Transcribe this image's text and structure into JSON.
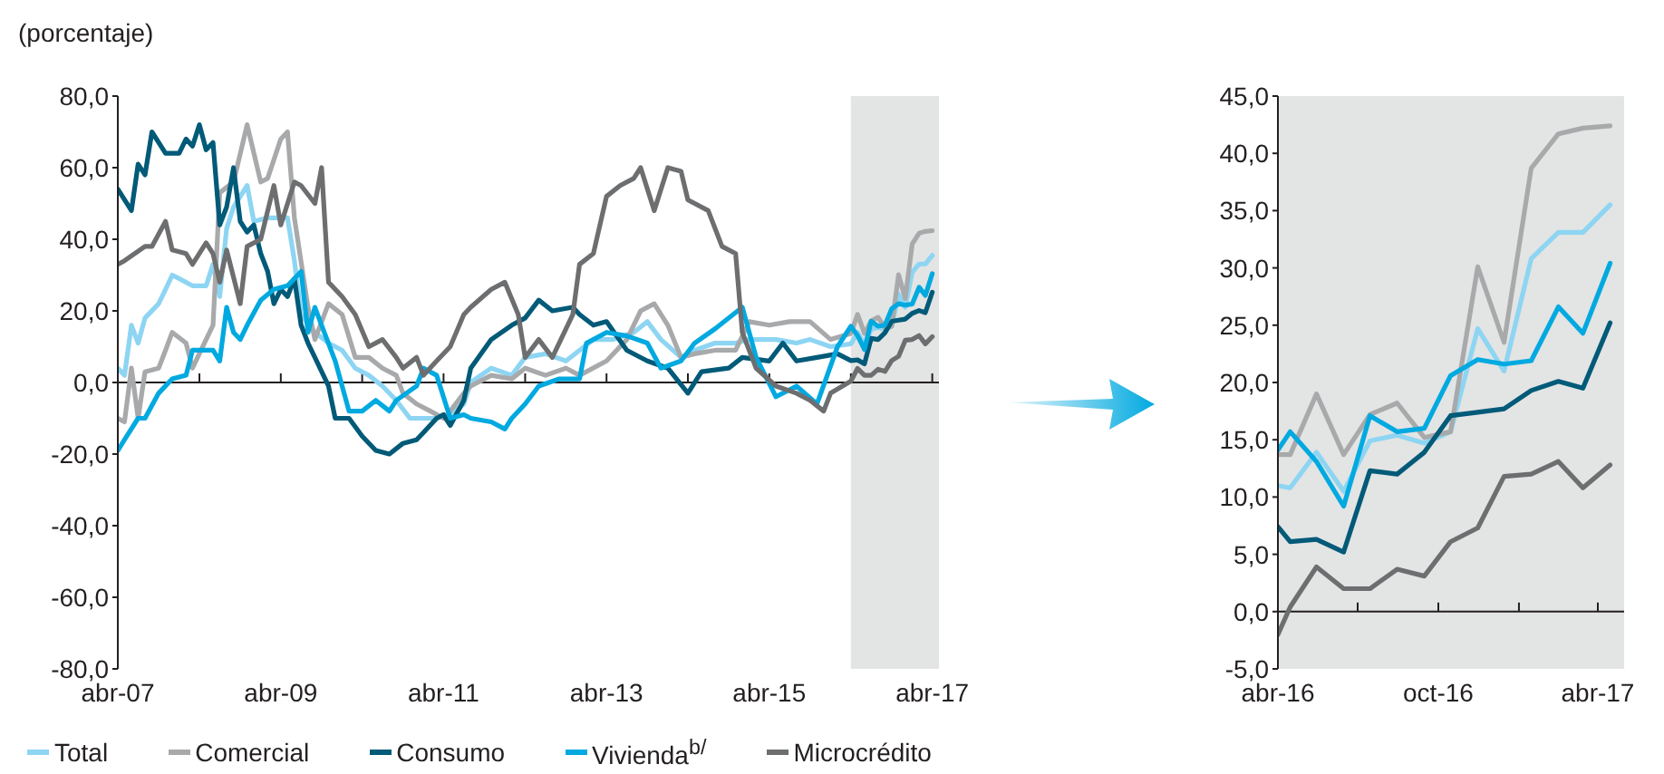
{
  "chart_data": [
    {
      "type": "line",
      "ylabel": "(porcentaje)",
      "xlim": [
        "2007-04",
        "2017-05"
      ],
      "ylim": [
        -80,
        80
      ],
      "xticks": [
        {
          "value": "2007-04",
          "label": "abr-07"
        },
        {
          "value": "2008-04",
          "label": null
        },
        {
          "value": "2009-04",
          "label": "abr-09"
        },
        {
          "value": "2010-04",
          "label": null
        },
        {
          "value": "2011-04",
          "label": "abr-11"
        },
        {
          "value": "2012-04",
          "label": null
        },
        {
          "value": "2013-04",
          "label": "abr-13"
        },
        {
          "value": "2014-04",
          "label": null
        },
        {
          "value": "2015-04",
          "label": "abr-15"
        },
        {
          "value": "2016-04",
          "label": null
        },
        {
          "value": "2017-04",
          "label": "abr-17"
        }
      ],
      "yticks": [
        {
          "value": -80,
          "label": "-80,0"
        },
        {
          "value": -60,
          "label": "-60,0"
        },
        {
          "value": -40,
          "label": "-40,0"
        },
        {
          "value": -20,
          "label": "-20,0"
        },
        {
          "value": 0,
          "label": "0,0"
        },
        {
          "value": 20,
          "label": "20,0"
        },
        {
          "value": 40,
          "label": "40,0"
        },
        {
          "value": 60,
          "label": "60,0"
        },
        {
          "value": 80,
          "label": "80,0"
        }
      ],
      "bands": [
        {
          "axis": "x",
          "from": "2016-04",
          "to": "2017-05",
          "label": null,
          "color": "#e3e4e4"
        }
      ],
      "ref_lines": [
        {
          "axis": "y",
          "value": 0,
          "label": null,
          "color": "#231f20"
        }
      ],
      "grid": false,
      "legend": "bottom",
      "marker": "none",
      "line_style": "solid",
      "series": [
        {
          "name": "Total",
          "color": "#8dd5f2",
          "x": [
            "2007-04",
            "2007-05",
            "2007-06",
            "2007-07",
            "2007-08",
            "2007-10",
            "2007-11",
            "2007-12",
            "2008-02",
            "2008-03",
            "2008-05",
            "2008-06",
            "2008-07",
            "2008-08",
            "2008-09",
            "2008-11",
            "2008-12",
            "2009-02",
            "2009-05",
            "2009-06",
            "2009-07",
            "2009-09",
            "2009-11",
            "2010-01",
            "2010-03",
            "2010-05",
            "2010-07",
            "2010-09",
            "2010-11",
            "2011-01",
            "2011-03",
            "2011-05",
            "2011-07",
            "2011-08",
            "2011-11",
            "2012-02",
            "2012-04",
            "2012-07",
            "2012-10",
            "2012-12",
            "2013-02",
            "2013-05",
            "2013-08",
            "2013-10",
            "2013-12",
            "2014-03",
            "2014-05",
            "2014-08",
            "2014-11",
            "2015-01",
            "2015-05",
            "2015-08",
            "2015-10",
            "2016-01",
            "2016-04",
            "2016-05",
            "2016-06",
            "2016-07",
            "2016-08",
            "2016-09",
            "2016-10",
            "2016-11",
            "2016-12",
            "2017-01",
            "2017-02",
            "2017-03",
            "2017-04"
          ],
          "values": [
            4,
            2,
            16,
            11,
            18,
            22,
            26,
            30,
            28,
            27,
            27,
            33,
            24,
            43,
            49,
            55,
            45,
            46,
            46,
            34,
            19,
            14,
            11,
            9,
            4,
            2,
            -1,
            -5,
            -10,
            -10,
            -10,
            -9,
            -6,
            0,
            4,
            2,
            7,
            8,
            6,
            9,
            12,
            12,
            14,
            17,
            12,
            7,
            9,
            11,
            11,
            12,
            12,
            11,
            12,
            10,
            10.8,
            13.9,
            10.5,
            14.9,
            15.4,
            14.7,
            15.7,
            24.7,
            21.0,
            30.8,
            33.1,
            33.1,
            35.5
          ]
        },
        {
          "name": "Comercial",
          "color": "#a8a9ab",
          "x": [
            "2007-04",
            "2007-05",
            "2007-06",
            "2007-07",
            "2007-08",
            "2007-10",
            "2007-11",
            "2007-12",
            "2008-02",
            "2008-03",
            "2008-05",
            "2008-06",
            "2008-07",
            "2008-09",
            "2008-11",
            "2009-01",
            "2009-02",
            "2009-04",
            "2009-05",
            "2009-06",
            "2009-08",
            "2009-09",
            "2009-11",
            "2010-01",
            "2010-03",
            "2010-05",
            "2010-07",
            "2010-09",
            "2010-10",
            "2010-12",
            "2011-02",
            "2011-04",
            "2011-05",
            "2011-07",
            "2011-08",
            "2011-11",
            "2012-02",
            "2012-04",
            "2012-07",
            "2012-10",
            "2012-12",
            "2013-04",
            "2013-07",
            "2013-09",
            "2013-11",
            "2014-01",
            "2014-03",
            "2014-05",
            "2014-08",
            "2014-11",
            "2015-01",
            "2015-04",
            "2015-07",
            "2015-10",
            "2016-01",
            "2016-04",
            "2016-05",
            "2016-06",
            "2016-07",
            "2016-08",
            "2016-09",
            "2016-10",
            "2016-11",
            "2016-12",
            "2017-01",
            "2017-02",
            "2017-03",
            "2017-04"
          ],
          "values": [
            -10,
            -11,
            4,
            -10,
            3,
            4,
            9,
            14,
            11,
            4,
            12,
            16,
            53,
            56,
            72,
            56,
            57,
            68,
            70,
            46,
            21,
            12,
            22,
            19,
            7,
            7,
            4,
            2,
            -3,
            -6,
            -8,
            -10,
            -8,
            -3,
            -1,
            2,
            1,
            4,
            2,
            4,
            2,
            6,
            12,
            20,
            22,
            16,
            7,
            8,
            9,
            9,
            17,
            16,
            17,
            17,
            12,
            13.7,
            19.0,
            13.7,
            17.2,
            18.2,
            15.2,
            15.7,
            30.1,
            23.5,
            38.7,
            41.7,
            42.2,
            42.4
          ]
        },
        {
          "name": "Consumo",
          "color": "#005a78",
          "x": [
            "2007-04",
            "2007-06",
            "2007-07",
            "2007-08",
            "2007-09",
            "2007-11",
            "2008-01",
            "2008-02",
            "2008-03",
            "2008-04",
            "2008-05",
            "2008-06",
            "2008-07",
            "2008-08",
            "2008-09",
            "2008-10",
            "2008-11",
            "2008-12",
            "2009-01",
            "2009-02",
            "2009-03",
            "2009-04",
            "2009-05",
            "2009-06",
            "2009-07",
            "2009-08",
            "2009-09",
            "2009-11",
            "2009-12",
            "2010-02",
            "2010-04",
            "2010-06",
            "2010-08",
            "2010-10",
            "2010-12",
            "2011-01",
            "2011-03",
            "2011-04",
            "2011-05",
            "2011-07",
            "2011-08",
            "2011-11",
            "2012-02",
            "2012-04",
            "2012-06",
            "2012-08",
            "2012-11",
            "2012-12",
            "2013-02",
            "2013-04",
            "2013-07",
            "2013-10",
            "2014-01",
            "2014-04",
            "2014-06",
            "2014-10",
            "2014-12",
            "2015-04",
            "2015-06",
            "2015-08",
            "2015-11",
            "2016-02",
            "2016-04",
            "2016-05",
            "2016-06",
            "2016-07",
            "2016-08",
            "2016-09",
            "2016-10",
            "2016-11",
            "2016-12",
            "2017-01",
            "2017-02",
            "2017-03",
            "2017-04"
          ],
          "values": [
            54,
            48,
            61,
            58,
            70,
            64,
            64,
            68,
            66,
            72,
            65,
            67,
            44,
            49,
            60,
            45,
            42,
            44,
            36,
            31,
            22,
            26,
            24,
            29,
            16,
            11,
            7,
            -1,
            -10,
            -10,
            -15,
            -19,
            -20,
            -17,
            -16,
            -14,
            -10,
            -9,
            -12,
            -5,
            4,
            12,
            16,
            18,
            23,
            20,
            21,
            19,
            16,
            17,
            9,
            6,
            4,
            -3,
            3,
            4,
            7,
            6,
            11,
            6,
            7,
            8,
            6.1,
            6.3,
            5.2,
            12.3,
            12.0,
            13.9,
            17.1,
            17.4,
            17.7,
            19.3,
            20.1,
            19.5,
            25.2
          ]
        },
        {
          "name": "Vivienda$^{b/}$",
          "color": "#00a9e0",
          "x": [
            "2007-04",
            "2007-05",
            "2007-07",
            "2007-08",
            "2007-10",
            "2007-12",
            "2008-02",
            "2008-03",
            "2008-06",
            "2008-07",
            "2008-08",
            "2008-09",
            "2008-10",
            "2008-11",
            "2009-01",
            "2009-03",
            "2009-05",
            "2009-06",
            "2009-07",
            "2009-08",
            "2009-09",
            "2009-10",
            "2009-12",
            "2010-02",
            "2010-04",
            "2010-06",
            "2010-08",
            "2010-09",
            "2010-12",
            "2011-01",
            "2011-03",
            "2011-05",
            "2011-07",
            "2011-08",
            "2011-11",
            "2012-01",
            "2012-02",
            "2012-04",
            "2012-06",
            "2012-09",
            "2012-12",
            "2013-01",
            "2013-02",
            "2013-04",
            "2013-07",
            "2013-10",
            "2013-12",
            "2014-03",
            "2014-05",
            "2014-08",
            "2014-12",
            "2015-02",
            "2015-05",
            "2015-08",
            "2015-11",
            "2016-02",
            "2016-04",
            "2016-05",
            "2016-06",
            "2016-07",
            "2016-08",
            "2016-09",
            "2016-10",
            "2016-11",
            "2016-12",
            "2017-01",
            "2017-02",
            "2017-03",
            "2017-04"
          ],
          "values": [
            -19,
            -16,
            -10,
            -10,
            -3,
            1,
            2,
            9,
            9,
            6,
            21,
            14,
            12,
            16,
            23,
            26,
            27,
            29,
            31,
            14,
            21,
            16,
            6,
            -8,
            -8,
            -5,
            -8,
            -5,
            -1,
            4,
            2,
            -10,
            -9,
            -10,
            -11,
            -13,
            -10,
            -6,
            -1,
            1,
            1,
            11,
            12,
            14,
            13,
            11,
            4,
            6,
            11,
            15,
            21,
            7,
            -4,
            -1,
            -6,
            10,
            15.7,
            13.1,
            9.2,
            17.1,
            15.7,
            16.0,
            20.6,
            22.0,
            21.6,
            21.9,
            26.6,
            24.3,
            30.4
          ]
        },
        {
          "name": "Microcrédito",
          "color": "#6d6e70",
          "x": [
            "2007-04",
            "2007-05",
            "2007-08",
            "2007-09",
            "2007-11",
            "2007-12",
            "2008-02",
            "2008-03",
            "2008-05",
            "2008-06",
            "2008-07",
            "2008-08",
            "2008-10",
            "2008-11",
            "2009-01",
            "2009-03",
            "2009-04",
            "2009-06",
            "2009-07",
            "2009-09",
            "2009-10",
            "2009-11",
            "2010-01",
            "2010-03",
            "2010-05",
            "2010-07",
            "2010-09",
            "2010-10",
            "2010-12",
            "2011-01",
            "2011-03",
            "2011-05",
            "2011-07",
            "2011-08",
            "2011-11",
            "2012-01",
            "2012-03",
            "2012-04",
            "2012-06",
            "2012-08",
            "2012-11",
            "2012-12",
            "2013-02",
            "2013-04",
            "2013-06",
            "2013-08",
            "2013-09",
            "2013-11",
            "2014-01",
            "2014-03",
            "2014-04",
            "2014-07",
            "2014-09",
            "2014-11",
            "2014-12",
            "2015-02",
            "2015-05",
            "2015-08",
            "2015-10",
            "2015-12",
            "2016-01",
            "2016-04",
            "2016-05",
            "2016-06",
            "2016-07",
            "2016-08",
            "2016-09",
            "2016-10",
            "2016-11",
            "2016-12",
            "2017-01",
            "2017-02",
            "2017-03",
            "2017-04"
          ],
          "values": [
            33,
            34,
            38,
            38,
            45,
            37,
            36,
            33,
            39,
            36,
            28,
            37,
            22,
            38,
            40,
            55,
            44,
            56,
            55,
            50,
            60,
            28,
            24,
            19,
            10,
            12,
            7,
            4,
            7,
            2,
            6,
            10,
            19,
            21,
            26,
            28,
            19,
            7,
            12,
            7,
            19,
            33,
            36,
            52,
            55,
            57,
            60,
            48,
            60,
            59,
            51,
            48,
            38,
            36,
            14,
            4,
            -1,
            -3,
            -5,
            -8,
            -3,
            0.4,
            3.9,
            2.0,
            2.0,
            3.7,
            3.1,
            6.1,
            7.3,
            11.8,
            12.0,
            13.1,
            10.8,
            12.8
          ]
        }
      ]
    },
    {
      "type": "line",
      "xlim": [
        "2016-04-01",
        "2017-05-01"
      ],
      "ylim": [
        -5,
        45
      ],
      "xticks": [
        {
          "value": "2016-04-01",
          "label": "abr-16"
        },
        {
          "value": "2016-07-01",
          "label": null
        },
        {
          "value": "2016-10-01",
          "label": "oct-16"
        },
        {
          "value": "2017-01-01",
          "label": null
        },
        {
          "value": "2017-04-01",
          "label": "abr-17"
        }
      ],
      "yticks": [
        {
          "value": -5,
          "label": "-5,0"
        },
        {
          "value": 0,
          "label": "0,0"
        },
        {
          "value": 5,
          "label": "5,0"
        },
        {
          "value": 10,
          "label": "10,0"
        },
        {
          "value": 15,
          "label": "15,0"
        },
        {
          "value": 20,
          "label": "20,0"
        },
        {
          "value": 25,
          "label": "25,0"
        },
        {
          "value": 30,
          "label": "30,0"
        },
        {
          "value": 35,
          "label": "35,0"
        },
        {
          "value": 40,
          "label": "40,0"
        },
        {
          "value": 45,
          "label": "45,0"
        }
      ],
      "bands": [
        {
          "axis": "x",
          "from": "2016-04-01",
          "to": "2017-05-01",
          "label": null,
          "color": "#e3e4e4"
        }
      ],
      "ref_lines": [
        {
          "axis": "y",
          "value": 0,
          "label": null,
          "color": "#231f20"
        }
      ],
      "grid": false,
      "marker": "none",
      "line_style": "solid",
      "x": [
        "2016-04-01",
        "2016-04-15",
        "2016-05-15",
        "2016-06-15",
        "2016-07-15",
        "2016-08-15",
        "2016-09-15",
        "2016-10-15",
        "2016-11-15",
        "2016-12-15",
        "2017-01-15",
        "2017-02-15",
        "2017-03-15",
        "2017-04-15"
      ],
      "series": [
        {
          "color": "#8dd5f2",
          "values": [
            11.0,
            10.8,
            13.9,
            10.5,
            14.9,
            15.4,
            14.7,
            15.7,
            24.7,
            21.0,
            30.8,
            33.1,
            33.1,
            35.5
          ]
        },
        {
          "color": "#a8a9ab",
          "values": [
            13.7,
            13.7,
            19.0,
            13.7,
            17.2,
            18.2,
            15.2,
            15.7,
            30.1,
            23.5,
            38.7,
            41.7,
            42.2,
            42.4
          ]
        },
        {
          "color": "#005a78",
          "values": [
            7.4,
            6.1,
            6.3,
            5.2,
            12.3,
            12.0,
            13.9,
            17.1,
            17.4,
            17.7,
            19.3,
            20.1,
            19.5,
            25.2
          ]
        },
        {
          "color": "#00a9e0",
          "values": [
            14.1,
            15.7,
            13.1,
            9.2,
            17.1,
            15.7,
            16.0,
            20.6,
            22.0,
            21.6,
            21.9,
            26.6,
            24.3,
            30.4
          ]
        },
        {
          "color": "#6d6e70",
          "values": [
            -2.0,
            0.4,
            3.9,
            2.0,
            2.0,
            3.7,
            3.1,
            6.1,
            7.3,
            11.8,
            12.0,
            13.1,
            10.8,
            12.8
          ]
        }
      ]
    }
  ]
}
